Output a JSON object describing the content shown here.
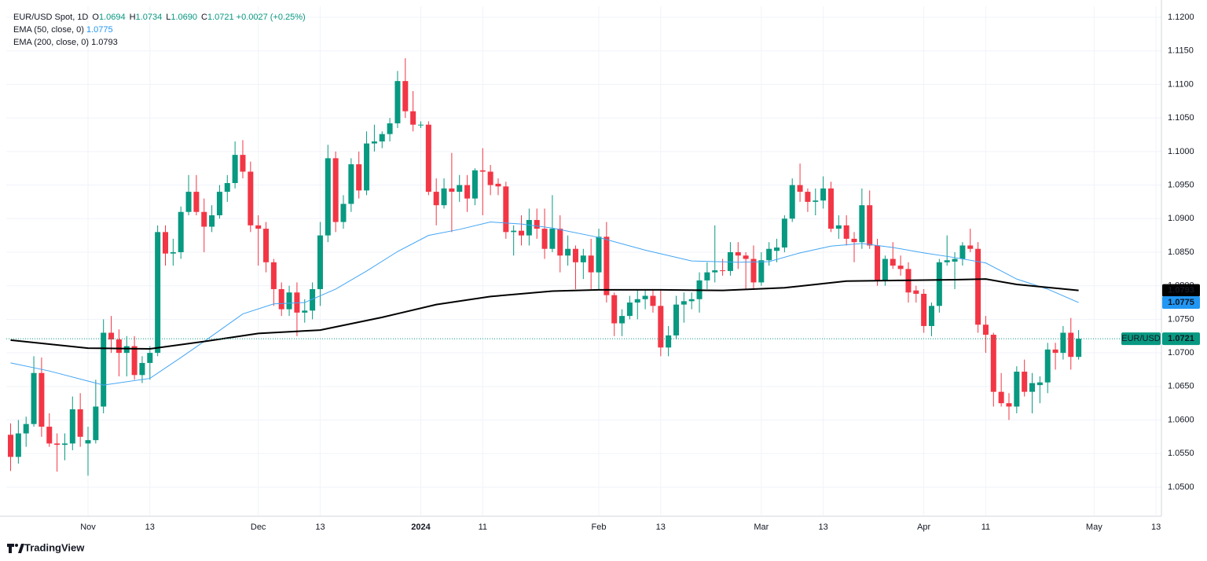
{
  "chart_data": {
    "type": "candlestick",
    "header": {
      "symbol": "EUR/USD Spot, 1D",
      "fields": [
        "O",
        "H",
        "L",
        "C"
      ],
      "field_values": [
        "1.0694",
        "1.0734",
        "1.0690",
        "1.0721"
      ],
      "change": "+0.0027 (+0.25%)"
    },
    "instrument": "EUR/USD",
    "up_color": "#089981",
    "down_color": "#f23645",
    "xlim": [
      -0.56,
      148.7
    ],
    "xticks": [
      {
        "value": 10,
        "label": "Nov"
      },
      {
        "value": 18,
        "label": "13"
      },
      {
        "value": 32,
        "label": "Dec"
      },
      {
        "value": 40,
        "label": "13"
      },
      {
        "value": 53,
        "label": "2024"
      },
      {
        "value": 61,
        "label": "11"
      },
      {
        "value": 76,
        "label": "Feb"
      },
      {
        "value": 84,
        "label": "13"
      },
      {
        "value": 97,
        "label": "Mar"
      },
      {
        "value": 105,
        "label": "13"
      },
      {
        "value": 118,
        "label": "Apr"
      },
      {
        "value": 126,
        "label": "11"
      },
      {
        "value": 140,
        "label": "May"
      },
      {
        "value": 148,
        "label": "13"
      }
    ],
    "ylim": [
      1.04578,
      1.12164
    ],
    "yticks": [
      {
        "value": 1.05,
        "label": "1.0500"
      },
      {
        "value": 1.055,
        "label": "1.0550"
      },
      {
        "value": 1.06,
        "label": "1.0600"
      },
      {
        "value": 1.065,
        "label": "1.0650"
      },
      {
        "value": 1.07,
        "label": "1.0700"
      },
      {
        "value": 1.075,
        "label": "1.0750"
      },
      {
        "value": 1.08,
        "label": "1.0800"
      },
      {
        "value": 1.085,
        "label": "1.0850"
      },
      {
        "value": 1.09,
        "label": "1.0900"
      },
      {
        "value": 1.095,
        "label": "1.0950"
      },
      {
        "value": 1.1,
        "label": "1.1000"
      },
      {
        "value": 1.105,
        "label": "1.1050"
      },
      {
        "value": 1.11,
        "label": "1.1100"
      },
      {
        "value": 1.115,
        "label": "1.1150"
      },
      {
        "value": 1.12,
        "label": "1.1200"
      }
    ],
    "grid": true,
    "open": [
      1.0578,
      1.0545,
      1.058,
      1.0594,
      1.067,
      1.059,
      1.0565,
      1.0563,
      1.0565,
      1.0616,
      1.0565,
      1.057,
      1.062,
      1.073,
      1.072,
      1.07,
      1.071,
      1.0667,
      1.0685,
      1.07,
      1.088,
      1.0848,
      1.085,
      1.091,
      1.094,
      1.091,
      1.0888,
      1.0905,
      1.094,
      1.0953,
      1.0995,
      1.097,
      1.089,
      1.0885,
      1.0835,
      1.0795,
      1.0765,
      1.079,
      1.076,
      1.0763,
      1.0795,
      1.0875,
      1.099,
      1.0895,
      1.0922,
      1.0981,
      1.0942,
      1.1012,
      1.1015,
      1.1026,
      1.1042,
      1.1105,
      1.106,
      1.104,
      1.104,
      1.094,
      1.092,
      1.0945,
      1.094,
      1.095,
      1.093,
      1.0972,
      1.097,
      1.0952,
      1.0948,
      1.088,
      1.0882,
      1.0875,
      1.0898,
      1.0885,
      1.0855,
      1.0885,
      1.0845,
      1.0855,
      1.0835,
      1.0845,
      1.082,
      1.0873,
      1.0786,
      1.0744,
      1.0755,
      1.0775,
      1.078,
      1.0785,
      1.077,
      1.0708,
      1.0726,
      1.0772,
      1.0777,
      1.078,
      1.0808,
      1.082,
      1.0823,
      1.0822,
      1.085,
      1.0845,
      1.084,
      1.0805,
      1.0838,
      1.0852,
      1.0857,
      1.09,
      1.095,
      1.094,
      1.0925,
      1.0927,
      1.0945,
      1.0885,
      1.089,
      1.087,
      1.0865,
      1.092,
      1.086,
      1.0808,
      1.084,
      1.083,
      1.0825,
      1.0793,
      1.0788,
      1.074,
      1.077,
      1.0835,
      1.0836,
      1.084,
      1.086,
      1.0855,
      1.0742,
      1.0727,
      1.0642,
      1.0625,
      1.062,
      1.0672,
      1.0642,
      1.0652,
      1.0656,
      1.0705,
      1.07,
      1.073,
      1.0694
    ],
    "high": [
      1.0595,
      1.06,
      1.0605,
      1.0695,
      1.0693,
      1.061,
      1.058,
      1.058,
      1.0635,
      1.064,
      1.059,
      1.066,
      1.075,
      1.0755,
      1.0735,
      1.0725,
      1.0725,
      1.0695,
      1.071,
      1.089,
      1.089,
      1.087,
      1.0918,
      1.0965,
      1.0965,
      1.093,
      1.092,
      1.095,
      1.0965,
      1.1015,
      1.1017,
      1.0985,
      1.0905,
      1.0895,
      1.084,
      1.0805,
      1.08,
      1.0805,
      1.078,
      1.0805,
      1.0895,
      1.101,
      1.1,
      1.0935,
      1.099,
      1.1,
      1.103,
      1.104,
      1.103,
      1.105,
      1.112,
      1.1139,
      1.109,
      1.1045,
      1.1045,
      1.096,
      1.096,
      1.0998,
      1.0965,
      1.0965,
      1.0975,
      1.1005,
      1.098,
      1.096,
      1.0955,
      1.089,
      1.0905,
      1.0915,
      1.0915,
      1.0915,
      1.0935,
      1.0905,
      1.0875,
      1.086,
      1.0855,
      1.087,
      1.0885,
      1.0895,
      1.079,
      1.0765,
      1.0785,
      1.0795,
      1.0795,
      1.0795,
      1.0795,
      1.074,
      1.0785,
      1.079,
      1.079,
      1.082,
      1.0835,
      1.089,
      1.084,
      1.0865,
      1.0865,
      1.085,
      1.086,
      1.085,
      1.0865,
      1.087,
      1.0905,
      1.096,
      1.0982,
      1.0945,
      1.0945,
      1.0963,
      1.0955,
      1.0905,
      1.0905,
      1.088,
      1.0945,
      1.0942,
      1.087,
      1.0845,
      1.0865,
      1.0845,
      1.0835,
      1.08,
      1.0795,
      1.0775,
      1.084,
      1.0875,
      1.085,
      1.0865,
      1.0885,
      1.0865,
      1.0755,
      1.073,
      1.067,
      1.064,
      1.068,
      1.069,
      1.067,
      1.0665,
      1.0715,
      1.0715,
      1.074,
      1.0752,
      1.0734
    ],
    "low": [
      1.0524,
      1.0535,
      1.056,
      1.059,
      1.0575,
      1.056,
      1.0523,
      1.054,
      1.0555,
      1.056,
      1.0517,
      1.0565,
      1.061,
      1.07,
      1.0665,
      1.0665,
      1.066,
      1.0655,
      1.066,
      1.0695,
      1.083,
      1.083,
      1.084,
      1.0905,
      1.0905,
      1.085,
      1.088,
      1.09,
      1.0925,
      1.0945,
      1.096,
      1.088,
      1.083,
      1.082,
      1.077,
      1.0755,
      1.0755,
      1.0725,
      1.0745,
      1.075,
      1.077,
      1.0865,
      1.088,
      1.0885,
      1.091,
      1.093,
      1.0935,
      1.1,
      1.1005,
      1.1015,
      1.1035,
      1.105,
      1.103,
      1.1035,
      1.0935,
      1.089,
      1.0915,
      1.088,
      1.0925,
      1.091,
      1.092,
      1.0905,
      1.0935,
      1.0935,
      1.087,
      1.0845,
      1.086,
      1.086,
      1.087,
      1.084,
      1.085,
      1.082,
      1.083,
      1.0795,
      1.081,
      1.0795,
      1.0795,
      1.0775,
      1.0725,
      1.0725,
      1.075,
      1.075,
      1.0765,
      1.076,
      1.0695,
      1.0695,
      1.072,
      1.0745,
      1.0765,
      1.076,
      1.0795,
      1.0805,
      1.0815,
      1.0815,
      1.0825,
      1.0795,
      1.0795,
      1.08,
      1.083,
      1.0835,
      1.085,
      1.0895,
      1.0925,
      1.091,
      1.0905,
      1.0915,
      1.088,
      1.087,
      1.086,
      1.0835,
      1.0855,
      1.0855,
      1.08,
      1.08,
      1.0825,
      1.0815,
      1.0775,
      1.0775,
      1.073,
      1.0725,
      1.076,
      1.083,
      1.0795,
      1.083,
      1.085,
      1.073,
      1.07,
      1.062,
      1.062,
      1.06,
      1.061,
      1.0635,
      1.061,
      1.0625,
      1.064,
      1.0675,
      1.069,
      1.0675,
      1.069
    ],
    "close": [
      1.0545,
      1.058,
      1.0594,
      1.067,
      1.059,
      1.0565,
      1.0563,
      1.0565,
      1.0616,
      1.0575,
      1.057,
      1.062,
      1.073,
      1.072,
      1.07,
      1.071,
      1.0667,
      1.0685,
      1.07,
      1.088,
      1.0848,
      1.085,
      1.091,
      1.094,
      1.091,
      1.0888,
      1.0905,
      1.094,
      1.0953,
      1.0995,
      1.097,
      1.089,
      1.0885,
      1.0835,
      1.0795,
      1.0765,
      1.079,
      1.076,
      1.0763,
      1.0795,
      1.0875,
      1.099,
      1.0895,
      1.0922,
      1.0981,
      1.0942,
      1.1012,
      1.1015,
      1.1026,
      1.1042,
      1.1105,
      1.106,
      1.104,
      1.104,
      1.094,
      1.092,
      1.0945,
      1.094,
      1.095,
      1.093,
      1.0972,
      1.097,
      1.095,
      1.0948,
      1.088,
      1.0882,
      1.0875,
      1.0898,
      1.0885,
      1.0855,
      1.0885,
      1.0845,
      1.0855,
      1.0835,
      1.0845,
      1.082,
      1.0873,
      1.0786,
      1.0744,
      1.0755,
      1.0775,
      1.078,
      1.0785,
      1.077,
      1.0708,
      1.0726,
      1.0772,
      1.0777,
      1.078,
      1.0808,
      1.082,
      1.0823,
      1.0822,
      1.085,
      1.0845,
      1.084,
      1.0805,
      1.0838,
      1.0855,
      1.0857,
      1.09,
      1.095,
      1.094,
      1.0925,
      1.0927,
      1.0945,
      1.0885,
      1.089,
      1.087,
      1.0865,
      1.092,
      1.086,
      1.0808,
      1.084,
      1.083,
      1.0825,
      1.079,
      1.0788,
      1.074,
      1.077,
      1.0835,
      1.0838,
      1.084,
      1.086,
      1.0855,
      1.0742,
      1.0727,
      1.0642,
      1.0625,
      1.062,
      1.0672,
      1.0642,
      1.0655,
      1.0656,
      1.0705,
      1.07,
      1.073,
      1.0694,
      1.0721
    ],
    "series": [
      {
        "name": "EMA (50, close, 0)",
        "color": "#42a5f5",
        "x": [
          0,
          5,
          10,
          12,
          18,
          22,
          25,
          30,
          34,
          38,
          42,
          46,
          50,
          54,
          58,
          62,
          66,
          70,
          76,
          82,
          88,
          94,
          98,
          102,
          106,
          110,
          114,
          118,
          122,
          126,
          130,
          134,
          138
        ],
        "values": [
          1.0685,
          1.0673,
          1.0658,
          1.0652,
          1.0662,
          1.0693,
          1.0717,
          1.0758,
          1.0773,
          1.0775,
          1.0795,
          1.0822,
          1.0851,
          1.0875,
          1.0884,
          1.0895,
          1.0892,
          1.0886,
          1.0872,
          1.0853,
          1.0837,
          1.0835,
          1.0836,
          1.0849,
          1.0859,
          1.0863,
          1.0857,
          1.0849,
          1.0842,
          1.0834,
          1.081,
          1.0795,
          1.0775
        ]
      },
      {
        "name": "EMA (200, close, 0)",
        "color": "#000000",
        "x": [
          0,
          10,
          18,
          25,
          32,
          40,
          48,
          55,
          62,
          70,
          76,
          84,
          92,
          100,
          108,
          115,
          122,
          126,
          130,
          138
        ],
        "values": [
          1.0719,
          1.0707,
          1.0706,
          1.0717,
          1.0729,
          1.0734,
          1.0753,
          1.0772,
          1.0784,
          1.0792,
          1.0794,
          1.0794,
          1.0793,
          1.0797,
          1.0807,
          1.0808,
          1.0809,
          1.081,
          1.0802,
          1.0793
        ]
      }
    ],
    "brand": "TradingView"
  }
}
